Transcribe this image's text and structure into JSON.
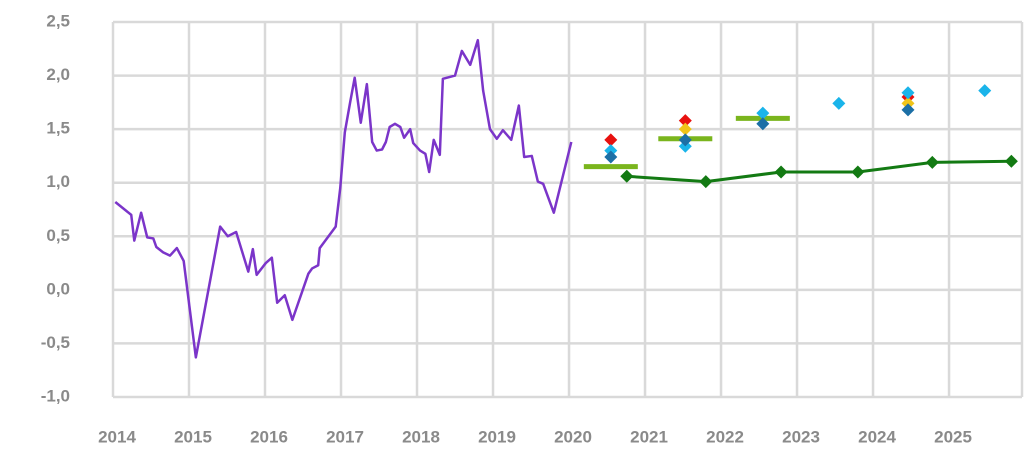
{
  "chart_data": {
    "type": "line",
    "xlim": [
      2014,
      2025.96
    ],
    "xticks": [
      2014,
      2015,
      2016,
      2017,
      2018,
      2019,
      2020,
      2021,
      2022,
      2023,
      2024,
      2025
    ],
    "ylim": [
      -1,
      2.5
    ],
    "yticks": [
      {
        "value": -1,
        "label": "-1,0"
      },
      {
        "value": -0.5,
        "label": "-0,5"
      },
      {
        "value": 0,
        "label": "0,0"
      },
      {
        "value": 0.5,
        "label": "0,5"
      },
      {
        "value": 1,
        "label": "1,0"
      },
      {
        "value": 1.5,
        "label": "1,5"
      },
      {
        "value": 2,
        "label": "2,0"
      },
      {
        "value": 2.5,
        "label": "2,5"
      }
    ],
    "grid": true,
    "series": [
      {
        "marker": "line",
        "color": "#7b35c9",
        "x": [
          2014.03,
          2014.24,
          2014.28,
          2014.37,
          2014.45,
          2014.53,
          2014.57,
          2014.66,
          2014.75,
          2014.84,
          2014.93,
          2015.09,
          2015.41,
          2015.51,
          2015.62,
          2015.78,
          2015.84,
          2015.89,
          2016.01,
          2016.09,
          2016.16,
          2016.26,
          2016.36,
          2016.57,
          2016.62,
          2016.7,
          2016.72,
          2016.93,
          2016.99,
          2017.05,
          2017.12,
          2017.18,
          2017.26,
          2017.34,
          2017.41,
          2017.47,
          2017.54,
          2017.59,
          2017.64,
          2017.71,
          2017.78,
          2017.83,
          2017.91,
          2017.95,
          2018.04,
          2018.11,
          2018.16,
          2018.22,
          2018.3,
          2018.34,
          2018.5,
          2018.59,
          2018.7,
          2018.8,
          2018.87,
          2018.96,
          2019.05,
          2019.13,
          2019.24,
          2019.34,
          2019.41,
          2019.51,
          2019.59,
          2019.66,
          2019.8,
          2020.03
        ],
        "values": [
          0.82,
          0.7,
          0.46,
          0.72,
          0.49,
          0.48,
          0.4,
          0.35,
          0.32,
          0.39,
          0.27,
          -0.63,
          0.59,
          0.5,
          0.54,
          0.17,
          0.38,
          0.14,
          0.25,
          0.3,
          -0.12,
          -0.05,
          -0.28,
          0.15,
          0.2,
          0.23,
          0.39,
          0.59,
          0.95,
          1.47,
          1.75,
          1.98,
          1.56,
          1.92,
          1.38,
          1.3,
          1.31,
          1.38,
          1.52,
          1.55,
          1.52,
          1.42,
          1.5,
          1.37,
          1.3,
          1.27,
          1.1,
          1.4,
          1.26,
          1.97,
          2.0,
          2.23,
          2.1,
          2.33,
          1.86,
          1.5,
          1.41,
          1.49,
          1.4,
          1.72,
          1.24,
          1.25,
          1.01,
          0.99,
          0.72,
          1.38
        ]
      },
      {
        "marker": "line-diamond",
        "color": "#137a13",
        "x": [
          2020.76,
          2021.8,
          2022.79,
          2023.8,
          2024.78,
          2025.82
        ],
        "values": [
          1.06,
          1.01,
          1.1,
          1.1,
          1.19,
          1.2
        ]
      },
      {
        "marker": "dash",
        "color": "#7ab51d",
        "x": [
          2020.55,
          2021.53,
          2022.55
        ],
        "values": [
          1.15,
          1.41,
          1.6
        ]
      },
      {
        "marker": "diamond",
        "color": "#e8110f",
        "x": [
          2020.55,
          2021.53,
          2024.46
        ],
        "values": [
          1.4,
          1.58,
          1.8
        ]
      },
      {
        "marker": "diamond",
        "color": "#f0c419",
        "x": [
          2021.53,
          2024.46
        ],
        "values": [
          1.5,
          1.74
        ]
      },
      {
        "marker": "diamond",
        "color": "#1ab4ea",
        "x": [
          2020.55,
          2021.53,
          2022.55,
          2023.55,
          2024.46,
          2025.47
        ],
        "values": [
          1.3,
          1.34,
          1.65,
          1.74,
          1.84,
          1.86
        ]
      },
      {
        "marker": "diamond",
        "color": "#1c6fa6",
        "x": [
          2020.55,
          2021.53,
          2022.55,
          2024.46
        ],
        "values": [
          1.24,
          1.4,
          1.55,
          1.68
        ]
      }
    ]
  }
}
